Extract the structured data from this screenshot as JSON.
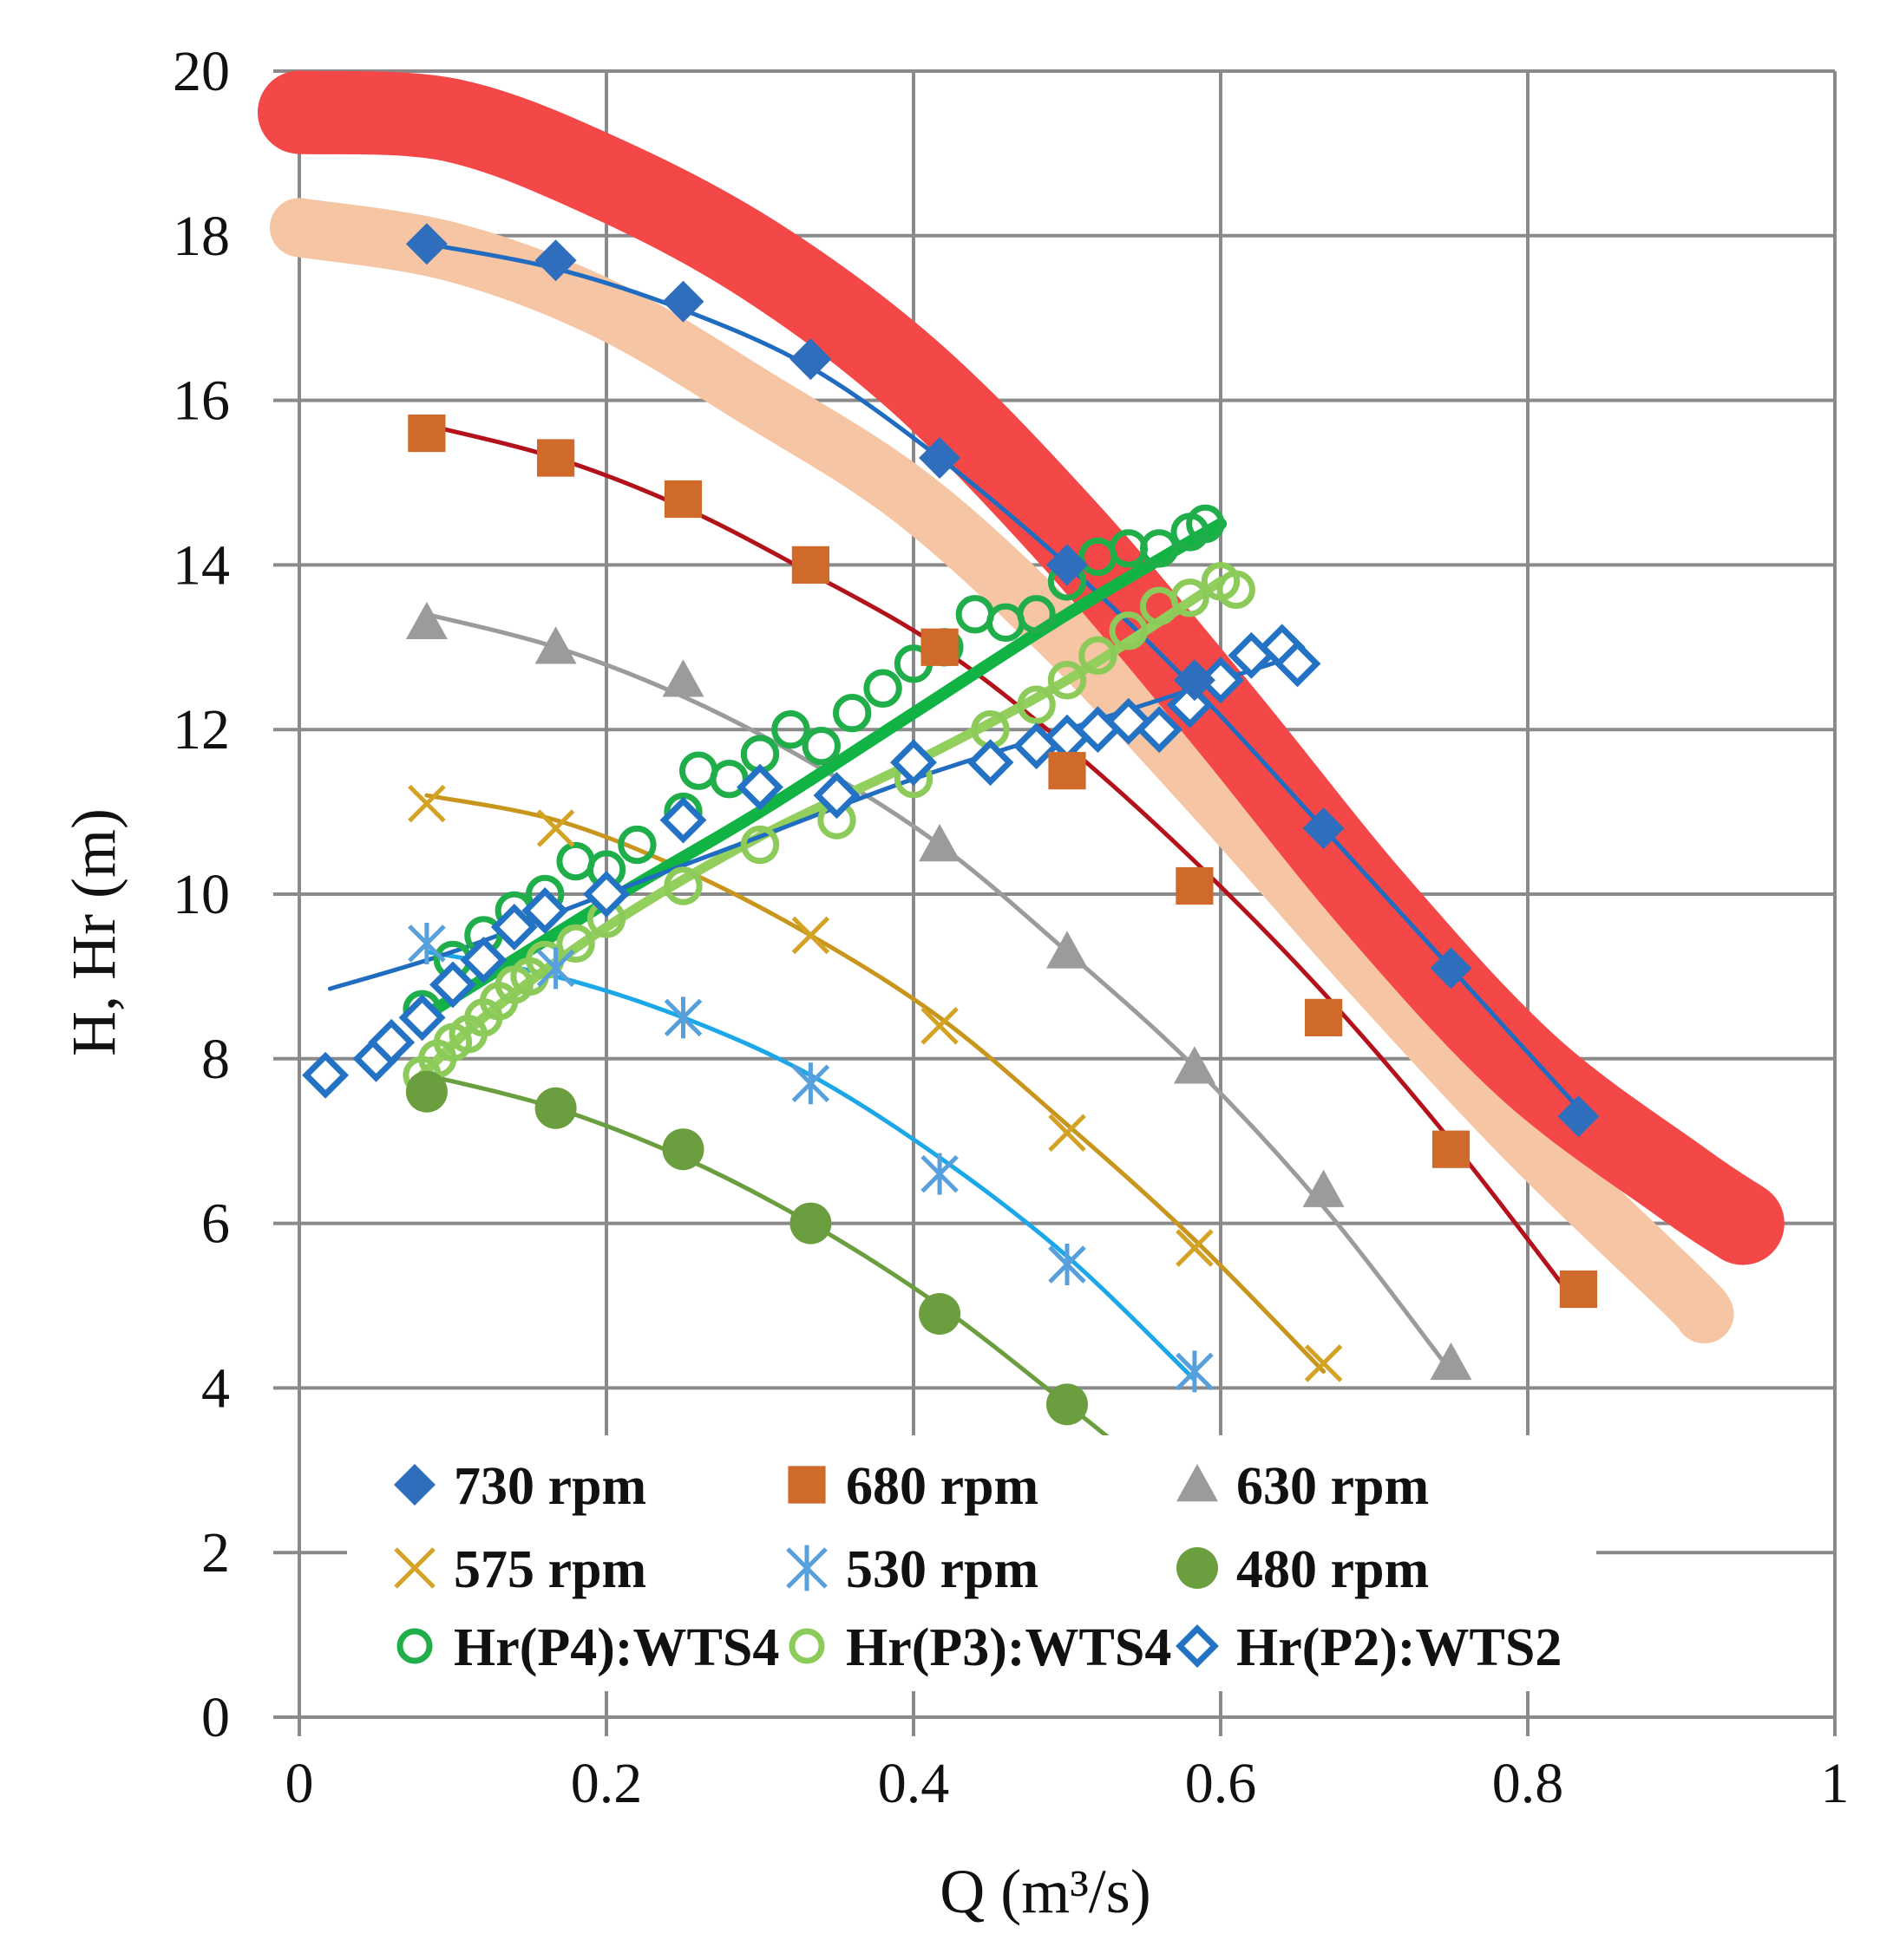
{
  "chart_data": {
    "type": "scatter",
    "title": "",
    "xlabel": "Q (m³/s)",
    "ylabel": "H, Hr (m)",
    "xlim": [
      0,
      1
    ],
    "ylim": [
      0,
      20
    ],
    "xticks": [
      "0",
      "0.2",
      "0.4",
      "0.6",
      "0.8",
      "1"
    ],
    "yticks": [
      "0",
      "2",
      "4",
      "6",
      "8",
      "10",
      "12",
      "14",
      "16",
      "18",
      "20"
    ],
    "grid": true,
    "legend_position": "bottom-inside",
    "bands": [
      {
        "name": "upper-band",
        "color": "#f44848",
        "x": [
          0.0,
          0.1,
          0.2,
          0.3,
          0.4,
          0.5,
          0.6,
          0.7,
          0.8,
          0.9,
          0.94
        ],
        "y": [
          19.5,
          19.4,
          18.7,
          17.7,
          16.3,
          14.4,
          12.2,
          9.9,
          7.9,
          6.5,
          6.0
        ]
      },
      {
        "name": "lower-band",
        "color": "#f6c5a4",
        "x": [
          0.0,
          0.1,
          0.2,
          0.3,
          0.4,
          0.5,
          0.6,
          0.7,
          0.8,
          0.9,
          0.915
        ],
        "y": [
          18.1,
          17.8,
          17.1,
          16.0,
          14.8,
          13.1,
          11.1,
          9.0,
          7.0,
          5.2,
          4.9
        ]
      }
    ],
    "series": [
      {
        "name": "730 rpm",
        "label": "730 rpm",
        "marker": "diamond",
        "color": "#2e6ebd",
        "x": [
          0.083,
          0.167,
          0.25,
          0.333,
          0.417,
          0.5,
          0.583,
          0.667,
          0.75,
          0.833
        ],
        "y": [
          17.9,
          17.7,
          17.2,
          16.5,
          15.3,
          14.0,
          12.6,
          10.8,
          9.1,
          7.3
        ],
        "fit": [
          [
            0.083,
            17.9
          ],
          [
            0.167,
            17.6
          ],
          [
            0.25,
            17.1
          ],
          [
            0.333,
            16.4
          ],
          [
            0.417,
            15.3
          ],
          [
            0.5,
            14.0
          ],
          [
            0.583,
            12.5
          ],
          [
            0.667,
            10.8
          ],
          [
            0.75,
            9.1
          ],
          [
            0.833,
            7.4
          ]
        ],
        "fit_color": "#1f6cc1"
      },
      {
        "name": "680 rpm",
        "label": "680 rpm",
        "marker": "square",
        "color": "#d06a2a",
        "x": [
          0.083,
          0.167,
          0.25,
          0.333,
          0.417,
          0.5,
          0.583,
          0.667,
          0.75,
          0.833
        ],
        "y": [
          15.6,
          15.3,
          14.8,
          14.0,
          13.0,
          11.5,
          10.1,
          8.5,
          6.9,
          5.2
        ],
        "fit": [
          [
            0.083,
            15.7
          ],
          [
            0.167,
            15.3
          ],
          [
            0.25,
            14.7
          ],
          [
            0.333,
            13.9
          ],
          [
            0.417,
            13.0
          ],
          [
            0.5,
            11.8
          ],
          [
            0.583,
            10.4
          ],
          [
            0.667,
            8.8
          ],
          [
            0.75,
            7.0
          ],
          [
            0.833,
            5.0
          ]
        ],
        "fit_color": "#b4121b"
      },
      {
        "name": "630 rpm",
        "label": "630 rpm",
        "marker": "triangle",
        "color": "#9b9b9b",
        "x": [
          0.083,
          0.167,
          0.25,
          0.417,
          0.5,
          0.583,
          0.667,
          0.75
        ],
        "y": [
          13.3,
          13.0,
          12.6,
          10.6,
          9.3,
          7.9,
          6.4,
          4.3
        ],
        "fit": [
          [
            0.083,
            13.4
          ],
          [
            0.167,
            13.0
          ],
          [
            0.25,
            12.4
          ],
          [
            0.333,
            11.6
          ],
          [
            0.417,
            10.6
          ],
          [
            0.5,
            9.3
          ],
          [
            0.583,
            7.9
          ],
          [
            0.667,
            6.2
          ],
          [
            0.75,
            4.2
          ]
        ],
        "fit_color": "#9b9b9b"
      },
      {
        "name": "575 rpm",
        "label": "575 rpm",
        "marker": "x",
        "color": "#d4a326",
        "x": [
          0.083,
          0.167,
          0.333,
          0.417,
          0.5,
          0.583,
          0.667
        ],
        "y": [
          11.1,
          10.8,
          9.5,
          8.4,
          7.1,
          5.7,
          4.3
        ],
        "fit": [
          [
            0.083,
            11.2
          ],
          [
            0.167,
            10.9
          ],
          [
            0.25,
            10.3
          ],
          [
            0.333,
            9.5
          ],
          [
            0.417,
            8.5
          ],
          [
            0.5,
            7.2
          ],
          [
            0.583,
            5.8
          ],
          [
            0.667,
            4.2
          ]
        ],
        "fit_color": "#c8961c"
      },
      {
        "name": "530 rpm",
        "label": "530 rpm",
        "marker": "star",
        "color": "#58a0dc",
        "x": [
          0.083,
          0.167,
          0.25,
          0.333,
          0.417,
          0.5,
          0.583
        ],
        "y": [
          9.4,
          9.1,
          8.5,
          7.7,
          6.6,
          5.5,
          4.2
        ],
        "fit": [
          [
            0.083,
            9.3
          ],
          [
            0.167,
            9.0
          ],
          [
            0.25,
            8.5
          ],
          [
            0.333,
            7.8
          ],
          [
            0.417,
            6.8
          ],
          [
            0.5,
            5.6
          ],
          [
            0.583,
            4.1
          ]
        ],
        "fit_color": "#1ca8e8"
      },
      {
        "name": "480 rpm",
        "label": "480 rpm",
        "marker": "circle",
        "color": "#6a9e3e",
        "x": [
          0.083,
          0.167,
          0.25,
          0.333,
          0.417,
          0.5
        ],
        "y": [
          7.6,
          7.4,
          6.9,
          6.0,
          4.9,
          3.8
        ],
        "fit": [
          [
            0.083,
            7.8
          ],
          [
            0.167,
            7.4
          ],
          [
            0.25,
            6.8
          ],
          [
            0.333,
            6.0
          ],
          [
            0.417,
            5.0
          ],
          [
            0.5,
            3.8
          ],
          [
            0.54,
            3.2
          ]
        ],
        "fit_color": "#6a9e3e"
      },
      {
        "name": "Hr(P4):WTS4",
        "label": "Hr(P4):WTS4",
        "marker": "open-circle",
        "color": "#1fae4a",
        "x": [
          0.08,
          0.1,
          0.12,
          0.14,
          0.16,
          0.18,
          0.2,
          0.22,
          0.25,
          0.26,
          0.28,
          0.3,
          0.32,
          0.34,
          0.36,
          0.38,
          0.4,
          0.42,
          0.44,
          0.46,
          0.48,
          0.5,
          0.52,
          0.54,
          0.56,
          0.58,
          0.59
        ],
        "y": [
          8.6,
          9.2,
          9.5,
          9.8,
          10.0,
          10.4,
          10.3,
          10.6,
          11.0,
          11.5,
          11.4,
          11.7,
          12.0,
          11.8,
          12.2,
          12.5,
          12.8,
          13.0,
          13.4,
          13.3,
          13.4,
          13.8,
          14.1,
          14.2,
          14.2,
          14.4,
          14.5
        ],
        "fit": [
          [
            0.08,
            8.5
          ],
          [
            0.2,
            9.9
          ],
          [
            0.3,
            11.0
          ],
          [
            0.4,
            12.2
          ],
          [
            0.5,
            13.4
          ],
          [
            0.6,
            14.5
          ]
        ],
        "fit_color": "#12b345"
      },
      {
        "name": "Hr(P3):WTS4",
        "label": "Hr(P3):WTS4",
        "marker": "open-circle",
        "color": "#8ccb5a",
        "x": [
          0.08,
          0.09,
          0.1,
          0.11,
          0.12,
          0.13,
          0.14,
          0.15,
          0.16,
          0.18,
          0.2,
          0.25,
          0.3,
          0.35,
          0.4,
          0.45,
          0.48,
          0.5,
          0.52,
          0.54,
          0.56,
          0.58,
          0.6,
          0.61
        ],
        "y": [
          7.8,
          8.0,
          8.2,
          8.3,
          8.5,
          8.7,
          8.9,
          9.0,
          9.2,
          9.4,
          9.7,
          10.1,
          10.6,
          10.9,
          11.4,
          12.0,
          12.3,
          12.6,
          12.9,
          13.2,
          13.5,
          13.6,
          13.8,
          13.7
        ],
        "fit": [
          [
            0.08,
            7.8
          ],
          [
            0.12,
            8.5
          ],
          [
            0.2,
            9.6
          ],
          [
            0.3,
            10.7
          ],
          [
            0.4,
            11.6
          ],
          [
            0.5,
            12.6
          ],
          [
            0.6,
            13.8
          ]
        ],
        "fit_color": "#92cf5d"
      },
      {
        "name": "Hr(P2):WTS2",
        "label": "Hr(P2):WTS2",
        "marker": "open-diamond",
        "color": "#2372c4",
        "x": [
          0.017,
          0.05,
          0.06,
          0.08,
          0.1,
          0.12,
          0.14,
          0.16,
          0.2,
          0.25,
          0.3,
          0.35,
          0.4,
          0.45,
          0.48,
          0.5,
          0.52,
          0.54,
          0.56,
          0.58,
          0.6,
          0.62,
          0.64,
          0.65
        ],
        "y": [
          7.8,
          8.0,
          8.2,
          8.5,
          8.9,
          9.2,
          9.6,
          9.8,
          10.0,
          10.9,
          11.3,
          11.2,
          11.6,
          11.6,
          11.8,
          11.9,
          12.0,
          12.1,
          12.0,
          12.3,
          12.6,
          12.9,
          13.0,
          12.8
        ],
        "fit": [
          [
            0.02,
            8.85
          ],
          [
            0.1,
            9.3
          ],
          [
            0.2,
            10.0
          ],
          [
            0.3,
            10.7
          ],
          [
            0.4,
            11.4
          ],
          [
            0.5,
            12.0
          ],
          [
            0.65,
            12.9
          ]
        ],
        "fit_color": "#1f6cc1"
      }
    ]
  }
}
